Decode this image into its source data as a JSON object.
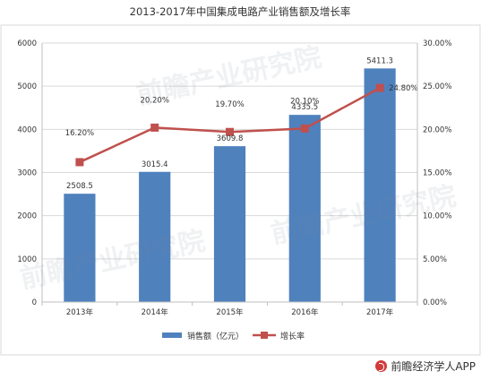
{
  "chart_data": {
    "type": "bar",
    "title": "2013-2017年中国集成电路产业销售额及增长率",
    "categories": [
      "2013年",
      "2014年",
      "2015年",
      "2016年",
      "2017年"
    ],
    "series": [
      {
        "name": "销售额（亿元）",
        "type": "bar",
        "axis": "left",
        "values": [
          2508.5,
          3015.4,
          3609.8,
          4335.5,
          5411.3
        ],
        "labels": [
          "2508.5",
          "3015.4",
          "3609.8",
          "4335.5",
          "5411.3"
        ]
      },
      {
        "name": "增长率",
        "type": "line",
        "axis": "right",
        "values": [
          16.2,
          20.2,
          19.7,
          20.1,
          24.8
        ],
        "labels": [
          "16.20%",
          "20.20%",
          "19.70%",
          "20.10%",
          "24.80%"
        ]
      }
    ],
    "ylim": [
      0,
      6000
    ],
    "yticks": [
      "0",
      "1000",
      "2000",
      "3000",
      "4000",
      "5000",
      "6000"
    ],
    "y2lim": [
      0,
      30
    ],
    "y2ticks": [
      "0.00%",
      "5.00%",
      "10.00%",
      "15.00%",
      "20.00%",
      "25.00%",
      "30.00%"
    ],
    "grid": true,
    "legend": "bottom",
    "colors": {
      "bar": "#4f81bd",
      "line": "#c0504d",
      "grid": "#d9d9d9"
    }
  },
  "watermark": {
    "text": "前瞻产业研究院"
  },
  "footer": {
    "brand": "前瞻经济学人APP"
  }
}
